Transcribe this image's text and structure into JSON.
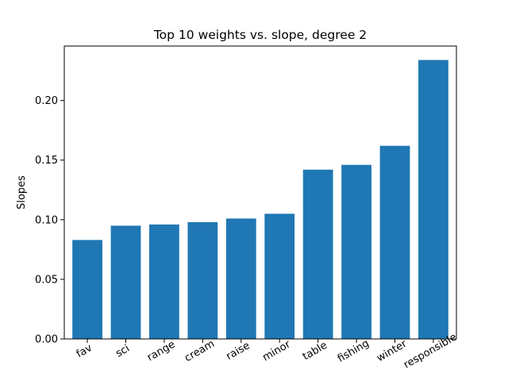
{
  "chart_data": {
    "type": "bar",
    "title": "Top 10 weights vs. slope, degree 2",
    "xlabel": "",
    "ylabel": "Slopes",
    "categories": [
      "fav",
      "sci",
      "range",
      "cream",
      "raise",
      "minor",
      "table",
      "fishing",
      "winter",
      "responsible"
    ],
    "values": [
      0.083,
      0.095,
      0.096,
      0.098,
      0.101,
      0.105,
      0.142,
      0.146,
      0.162,
      0.234
    ],
    "ylim": [
      0,
      0.2457
    ],
    "yticks": [
      0.0,
      0.05,
      0.1,
      0.15,
      0.2
    ],
    "ytick_labels": [
      "0.00",
      "0.05",
      "0.10",
      "0.15",
      "0.20"
    ],
    "xtick_rotation_deg": -30,
    "grid": false,
    "bar_color": "#1f77b4"
  }
}
